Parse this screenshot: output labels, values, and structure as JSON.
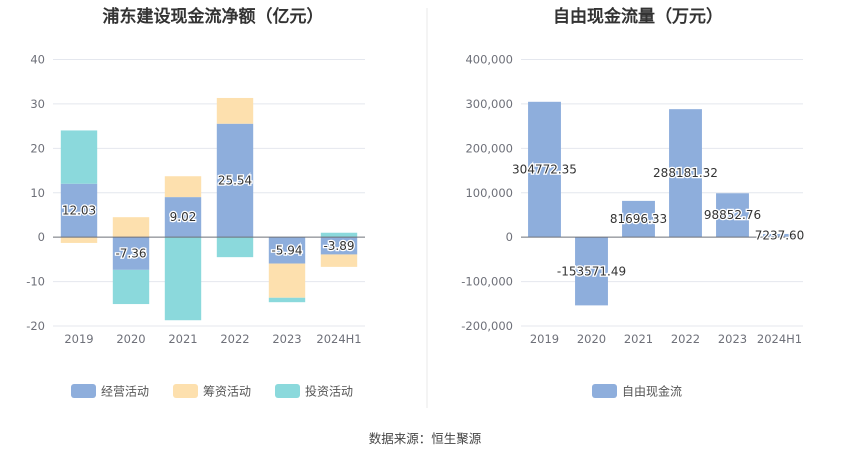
{
  "source_text": "数据来源：恒生聚源",
  "chart_data": [
    {
      "type": "bar",
      "stacked": true,
      "title": "浦东建设现金流净额（亿元）",
      "categories": [
        "2019",
        "2020",
        "2021",
        "2022",
        "2023",
        "2024H1"
      ],
      "ylim": [
        -20,
        40
      ],
      "yticks": [
        -20,
        -10,
        0,
        10,
        20,
        30,
        40
      ],
      "ytick_labels": [
        "-20",
        "-10",
        "0",
        "10",
        "20",
        "30",
        "40"
      ],
      "grid": true,
      "legend_position": "bottom",
      "label_series": "经营活动",
      "series": [
        {
          "name": "经营活动",
          "color": "#8eaedc",
          "values": [
            12.03,
            -7.36,
            9.02,
            25.54,
            -5.94,
            -3.89
          ],
          "labels": [
            "12.03",
            "-7.36",
            "9.02",
            "25.54",
            "-5.94",
            "-3.89"
          ]
        },
        {
          "name": "筹资活动",
          "color": "#fde0ae",
          "values": [
            -1.3,
            4.5,
            4.7,
            5.8,
            -7.7,
            -2.8
          ]
        },
        {
          "name": "投资活动",
          "color": "#8bd9dc",
          "values": [
            12.0,
            -7.7,
            -18.7,
            -4.5,
            -1.0,
            1.0
          ]
        }
      ]
    },
    {
      "type": "bar",
      "title": "自由现金流量（万元）",
      "categories": [
        "2019",
        "2020",
        "2021",
        "2022",
        "2023",
        "2024H1"
      ],
      "ylim": [
        -200000,
        400000
      ],
      "yticks": [
        -200000,
        -100000,
        0,
        100000,
        200000,
        300000,
        400000
      ],
      "ytick_labels": [
        "-200,000",
        "-100,000",
        "0",
        "100,000",
        "200,000",
        "300,000",
        "400,000"
      ],
      "grid": true,
      "legend_position": "bottom",
      "label_series": "自由现金流",
      "series": [
        {
          "name": "自由现金流",
          "color": "#8eaedc",
          "values": [
            304772.35,
            -153571.49,
            81696.33,
            288181.32,
            98852.76,
            7237.6
          ],
          "labels": [
            "304772.35",
            "-153571.49",
            "81696.33",
            "288181.32",
            "98852.76",
            "7237.60"
          ]
        }
      ]
    }
  ]
}
